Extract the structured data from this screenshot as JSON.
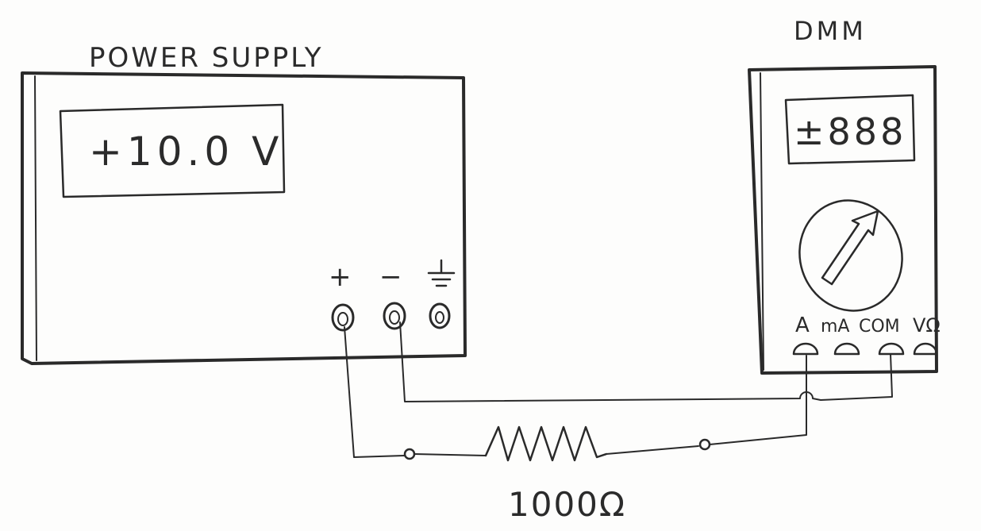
{
  "power_supply": {
    "title": "POWER SUPPLY",
    "display": "+10.0 V",
    "terminal_plus": "+",
    "terminal_minus": "−"
  },
  "dmm": {
    "title": "DMM",
    "display": "±888",
    "jack_a": "A",
    "jack_ma": "mA",
    "jack_com": "COM",
    "jack_vohm": "VΩ"
  },
  "resistor": {
    "label": "1000Ω"
  },
  "colors": {
    "ink": "#2a2a2a",
    "paper": "#fdfdfc"
  }
}
